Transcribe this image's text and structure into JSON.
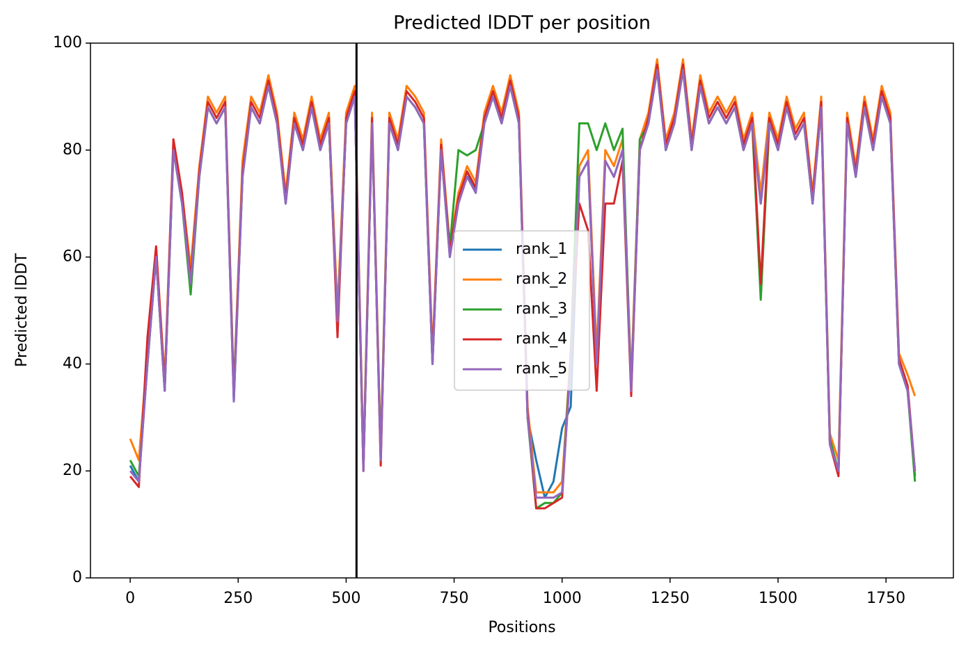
{
  "chart_data": {
    "type": "line",
    "title": "Predicted lDDT per position",
    "x_label": "Positions",
    "y_label": "Predicted lDDT",
    "x": [
      0,
      20,
      40,
      60,
      80,
      100,
      120,
      140,
      160,
      180,
      200,
      220,
      240,
      260,
      280,
      300,
      320,
      340,
      360,
      380,
      400,
      420,
      440,
      460,
      480,
      500,
      520,
      540,
      560,
      580,
      600,
      620,
      640,
      660,
      680,
      700,
      720,
      740,
      760,
      780,
      800,
      820,
      840,
      860,
      880,
      900,
      920,
      940,
      960,
      980,
      1000,
      1020,
      1040,
      1060,
      1080,
      1100,
      1120,
      1140,
      1160,
      1180,
      1200,
      1220,
      1240,
      1260,
      1280,
      1300,
      1320,
      1340,
      1360,
      1380,
      1400,
      1420,
      1440,
      1460,
      1480,
      1500,
      1520,
      1540,
      1560,
      1580,
      1600,
      1620,
      1640,
      1660,
      1680,
      1700,
      1720,
      1740,
      1760,
      1780,
      1800,
      1817
    ],
    "series": [
      {
        "name": "rank_1",
        "color": "#1f77b4",
        "values": [
          21,
          18,
          40,
          60,
          35,
          80,
          70,
          55,
          75,
          88,
          85,
          88,
          33,
          75,
          88,
          85,
          92,
          85,
          70,
          85,
          80,
          88,
          80,
          85,
          47,
          85,
          90,
          20,
          85,
          22,
          85,
          80,
          90,
          88,
          85,
          40,
          80,
          60,
          72,
          76,
          72,
          85,
          90,
          85,
          92,
          85,
          30,
          22,
          15,
          18,
          28,
          32,
          75,
          78,
          40,
          78,
          75,
          80,
          35,
          80,
          85,
          95,
          80,
          85,
          95,
          80,
          92,
          85,
          88,
          85,
          88,
          80,
          85,
          70,
          85,
          80,
          88,
          82,
          85,
          70,
          88,
          25,
          20,
          85,
          75,
          88,
          80,
          90,
          85,
          40,
          35,
          19
        ]
      },
      {
        "name": "rank_2",
        "color": "#ff7f0e",
        "values": [
          26,
          22,
          42,
          62,
          37,
          82,
          72,
          58,
          77,
          90,
          87,
          90,
          35,
          78,
          90,
          87,
          94,
          87,
          72,
          87,
          82,
          90,
          82,
          87,
          50,
          87,
          92,
          22,
          87,
          24,
          87,
          82,
          92,
          90,
          87,
          42,
          82,
          62,
          72,
          77,
          74,
          87,
          92,
          87,
          94,
          87,
          32,
          16,
          16,
          16,
          18,
          42,
          77,
          80,
          42,
          80,
          77,
          82,
          37,
          82,
          87,
          97,
          82,
          87,
          97,
          82,
          94,
          87,
          90,
          87,
          90,
          82,
          87,
          72,
          87,
          82,
          90,
          84,
          87,
          72,
          90,
          27,
          22,
          87,
          77,
          90,
          82,
          92,
          87,
          42,
          38,
          34
        ]
      },
      {
        "name": "rank_3",
        "color": "#2ca02c",
        "values": [
          22,
          19,
          40,
          60,
          35,
          80,
          70,
          53,
          75,
          88,
          85,
          88,
          35,
          75,
          88,
          85,
          92,
          85,
          70,
          85,
          80,
          88,
          80,
          85,
          48,
          85,
          90,
          21,
          85,
          23,
          85,
          80,
          90,
          88,
          85,
          40,
          80,
          62,
          80,
          79,
          80,
          85,
          90,
          85,
          92,
          85,
          30,
          13,
          14,
          14,
          16,
          42,
          85,
          85,
          80,
          85,
          80,
          84,
          35,
          82,
          85,
          95,
          80,
          85,
          95,
          80,
          92,
          85,
          88,
          85,
          88,
          80,
          85,
          52,
          85,
          80,
          88,
          82,
          85,
          70,
          88,
          26,
          20,
          85,
          75,
          88,
          80,
          90,
          85,
          40,
          35,
          18
        ]
      },
      {
        "name": "rank_4",
        "color": "#d62728",
        "values": [
          19,
          17,
          45,
          62,
          36,
          82,
          72,
          56,
          76,
          89,
          86,
          89,
          34,
          76,
          89,
          86,
          93,
          86,
          71,
          86,
          81,
          89,
          81,
          86,
          45,
          86,
          91,
          20,
          86,
          21,
          86,
          81,
          91,
          89,
          86,
          41,
          81,
          61,
          71,
          76,
          73,
          86,
          91,
          86,
          93,
          86,
          31,
          13,
          13,
          14,
          15,
          41,
          70,
          65,
          35,
          70,
          70,
          78,
          34,
          80,
          86,
          96,
          81,
          86,
          96,
          81,
          93,
          86,
          89,
          86,
          89,
          81,
          86,
          55,
          86,
          81,
          89,
          83,
          86,
          71,
          89,
          25,
          19,
          86,
          76,
          89,
          81,
          91,
          86,
          41,
          36,
          20
        ]
      },
      {
        "name": "rank_5",
        "color": "#9467bd",
        "values": [
          20,
          18,
          40,
          60,
          35,
          80,
          70,
          55,
          75,
          88,
          85,
          88,
          33,
          75,
          88,
          85,
          92,
          85,
          70,
          85,
          80,
          88,
          80,
          85,
          48,
          85,
          90,
          20,
          85,
          22,
          85,
          80,
          90,
          88,
          85,
          40,
          80,
          60,
          70,
          75,
          72,
          85,
          90,
          85,
          92,
          85,
          30,
          15,
          15,
          15,
          16,
          40,
          75,
          78,
          40,
          78,
          75,
          80,
          35,
          80,
          85,
          95,
          80,
          85,
          95,
          80,
          92,
          85,
          88,
          85,
          88,
          80,
          85,
          70,
          85,
          80,
          88,
          82,
          85,
          70,
          88,
          25,
          20,
          85,
          75,
          88,
          80,
          90,
          85,
          40,
          35,
          20
        ]
      }
    ],
    "vline": 524,
    "xlim": [
      -92,
      1906
    ],
    "ylim": [
      0,
      100
    ],
    "xticks": [
      0,
      250,
      500,
      750,
      1000,
      1250,
      1500,
      1750
    ],
    "yticks": [
      0,
      20,
      40,
      60,
      80,
      100
    ],
    "legend": "center",
    "grid": false
  }
}
